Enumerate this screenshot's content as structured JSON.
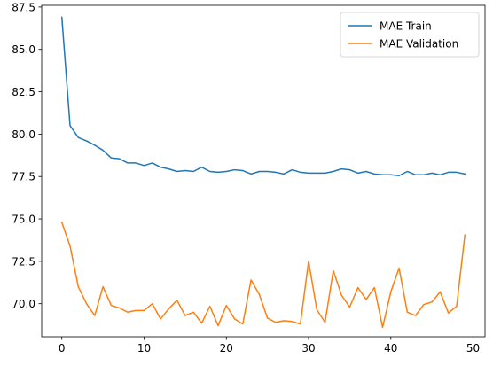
{
  "chart_data": {
    "type": "line",
    "xlim": [
      -2.45,
      51.45
    ],
    "ylim": [
      68.05,
      87.6
    ],
    "x_ticks": [
      0,
      10,
      20,
      30,
      40,
      50
    ],
    "y_ticks": [
      70.0,
      72.5,
      75.0,
      77.5,
      80.0,
      82.5,
      85.0,
      87.5
    ],
    "x_tick_labels": [
      "0",
      "10",
      "20",
      "30",
      "40",
      "50"
    ],
    "y_tick_labels": [
      "70.0",
      "72.5",
      "75.0",
      "77.5",
      "80.0",
      "82.5",
      "85.0",
      "87.5"
    ],
    "grid": false,
    "legend_position": "top-right",
    "series": [
      {
        "name": "MAE Train",
        "color": "#1f77b4",
        "x": [
          0,
          1,
          2,
          3,
          4,
          5,
          6,
          7,
          8,
          9,
          10,
          11,
          12,
          13,
          14,
          15,
          16,
          17,
          18,
          19,
          20,
          21,
          22,
          23,
          24,
          25,
          26,
          27,
          28,
          29,
          30,
          31,
          32,
          33,
          34,
          35,
          36,
          37,
          38,
          39,
          40,
          41,
          42,
          43,
          44,
          45,
          46,
          47,
          48,
          49
        ],
        "values": [
          86.9,
          80.5,
          79.8,
          79.6,
          79.35,
          79.05,
          78.6,
          78.55,
          78.3,
          78.3,
          78.15,
          78.3,
          78.05,
          77.95,
          77.8,
          77.85,
          77.8,
          78.05,
          77.8,
          77.75,
          77.8,
          77.9,
          77.85,
          77.65,
          77.8,
          77.8,
          77.75,
          77.65,
          77.9,
          77.75,
          77.7,
          77.7,
          77.7,
          77.8,
          77.95,
          77.9,
          77.7,
          77.8,
          77.65,
          77.6,
          77.6,
          77.55,
          77.8,
          77.6,
          77.6,
          77.7,
          77.6,
          77.75,
          77.75,
          77.65
        ]
      },
      {
        "name": "MAE Validation",
        "color": "#ff7f0e",
        "x": [
          0,
          1,
          2,
          3,
          4,
          5,
          6,
          7,
          8,
          9,
          10,
          11,
          12,
          13,
          14,
          15,
          16,
          17,
          18,
          19,
          20,
          21,
          22,
          23,
          24,
          25,
          26,
          27,
          28,
          29,
          30,
          31,
          32,
          33,
          34,
          35,
          36,
          37,
          38,
          39,
          40,
          41,
          42,
          43,
          44,
          45,
          46,
          47,
          48,
          49
        ],
        "values": [
          74.8,
          73.4,
          71.0,
          70.0,
          69.3,
          71.0,
          69.9,
          69.75,
          69.5,
          69.6,
          69.6,
          70.0,
          69.1,
          69.7,
          70.2,
          69.3,
          69.5,
          68.85,
          69.85,
          68.7,
          69.9,
          69.1,
          68.8,
          71.4,
          70.55,
          69.15,
          68.9,
          69.0,
          68.95,
          68.8,
          72.5,
          69.65,
          68.9,
          71.95,
          70.5,
          69.8,
          70.95,
          70.25,
          70.95,
          68.6,
          70.7,
          72.1,
          69.5,
          69.3,
          69.95,
          70.1,
          70.7,
          69.45,
          69.85,
          74.05
        ]
      }
    ]
  }
}
